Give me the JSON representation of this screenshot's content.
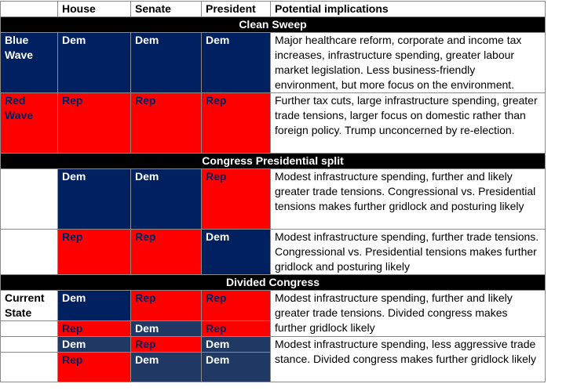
{
  "headers": [
    "",
    "House",
    "Senate",
    "President",
    "Potential implications"
  ],
  "sections": {
    "clean_sweep": "Clean Sweep",
    "congress_presidential_split": "Congress Presidential split",
    "divided_congress": "Divided Congress"
  },
  "rows": {
    "blue_wave": {
      "label": "Blue Wave",
      "house": "Dem",
      "senate": "Dem",
      "president": "Dem",
      "implications": "Major healthcare reform, corporate and income tax increases, infrastructure spending, greater labour market legislation. Less business-friendly environment, but more focus on the environment."
    },
    "red_wave": {
      "label": "Red Wave",
      "house": "Rep",
      "senate": "Rep",
      "president": "Rep",
      "implications": "Further tax cuts, large infrastructure spending, greater trade tensions, larger focus on domestic rather than foreign policy. Trump unconcerned by re-election."
    },
    "split_1": {
      "label": "",
      "house": "Dem",
      "senate": "Dem",
      "president": "Rep",
      "implications": "Modest infrastructure spending, further and likely greater trade tensions. Congressional vs. Presidential tensions makes further gridlock and posturing likely"
    },
    "split_2": {
      "label": "",
      "house": "Rep",
      "senate": "Rep",
      "president": "Dem",
      "implications": "Modest infrastructure spending, further trade tensions. Congressional vs. Presidential tensions makes further gridlock and posturing likely"
    },
    "divided_1": {
      "label": "Current State",
      "house": "Dem",
      "senate": "Rep",
      "president": "Rep",
      "implications": "Modest infrastructure spending, further and likely greater trade tensions. Divided congress makes further gridlock likely"
    },
    "divided_2": {
      "label": "",
      "house": "Rep",
      "senate": "Dem",
      "president": "Rep"
    },
    "divided_3": {
      "label": "",
      "house": "Dem",
      "senate": "Rep",
      "president": "Dem",
      "implications": "Modest infrastructure spending, less aggressive trade stance. Divided congress makes further gridlock likely"
    },
    "divided_4": {
      "label": "",
      "house": "Rep",
      "senate": "Dem",
      "president": "Dem"
    }
  },
  "colors": {
    "dem": "#002060",
    "dem_light": "#1f3864",
    "rep": "#ff0000",
    "section_bg": "#000000"
  }
}
